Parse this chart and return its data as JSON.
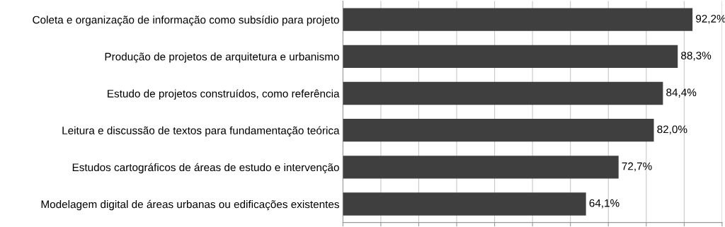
{
  "chart_data": {
    "type": "bar",
    "orientation": "horizontal",
    "categories": [
      "Coleta e organização de informação como subsídio para projeto",
      "Produção de projetos de arquitetura e urbanismo",
      "Estudo de projetos construídos, como referência",
      "Leitura e discussão de textos para fundamentação teórica",
      "Estudos cartográficos de áreas de estudo e intervenção",
      "Modelagem digital de áreas urbanas ou edificações existentes"
    ],
    "values": [
      92.2,
      88.3,
      84.4,
      82.0,
      72.7,
      64.1
    ],
    "value_labels": [
      "92,2%",
      "88,3%",
      "84,4%",
      "82,0%",
      "72,7%",
      "64,1%"
    ],
    "color": "#3f3f3f",
    "xlim": [
      0,
      100
    ],
    "xticks": [
      {
        "value": 0,
        "label": null
      },
      {
        "value": 10,
        "label": null
      },
      {
        "value": 20,
        "label": null
      },
      {
        "value": 30,
        "label": null
      },
      {
        "value": 40,
        "label": null
      },
      {
        "value": 50,
        "label": null
      },
      {
        "value": 60,
        "label": null
      },
      {
        "value": 70,
        "label": null
      },
      {
        "value": 80,
        "label": null
      },
      {
        "value": 90,
        "label": null
      },
      {
        "value": 100,
        "label": null
      }
    ],
    "grid": "x",
    "tick_labels": "y"
  }
}
